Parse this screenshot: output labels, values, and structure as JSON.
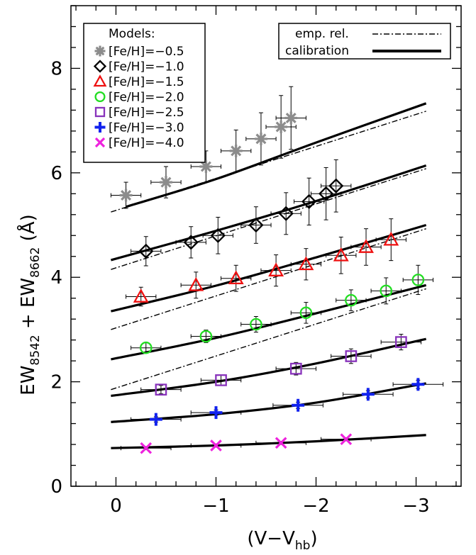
{
  "chart_data": {
    "type": "scatter",
    "title": "",
    "xlabel_main": "(V−V",
    "xlabel_sub": "hb",
    "xlabel_close": ")",
    "ylabel": {
      "prefix": "EW",
      "sub1": "8542",
      "mid": " + EW",
      "sub2": "8662",
      "suffix": " (Å)"
    },
    "xlim": [
      0.45,
      -3.45
    ],
    "ylim": [
      0,
      9.2
    ],
    "xticks": [
      0,
      -1,
      -2,
      -3
    ],
    "xtick_labels": [
      "0",
      "−1",
      "−2",
      "−3"
    ],
    "yticks": [
      0,
      2,
      4,
      6,
      8
    ],
    "ytick_labels": [
      "0",
      "2",
      "4",
      "6",
      "8"
    ],
    "legend_models": {
      "title": "Models:",
      "entries": [
        {
          "label": "[Fe/H]=−0.5",
          "marker": "asterisk",
          "color": "#8c8c8c"
        },
        {
          "label": "[Fe/H]=−1.0",
          "marker": "diamond",
          "color": "#000000"
        },
        {
          "label": "[Fe/H]=−1.5",
          "marker": "triangle",
          "color": "#ee1111"
        },
        {
          "label": "[Fe/H]=−2.0",
          "marker": "circle",
          "color": "#22dd22"
        },
        {
          "label": "[Fe/H]=−2.5",
          "marker": "square",
          "color": "#8833bb"
        },
        {
          "label": "[Fe/H]=−3.0",
          "marker": "plus",
          "color": "#1122ee"
        },
        {
          "label": "[Fe/H]=−4.0",
          "marker": "cross",
          "color": "#ee22dd"
        }
      ]
    },
    "legend_lines": {
      "entries": [
        {
          "label": "emp. rel.",
          "style": "dashdot"
        },
        {
          "label": "calibration",
          "style": "solid"
        }
      ]
    },
    "series": [
      {
        "name": "[Fe/H]=−0.5",
        "marker": "asterisk",
        "color": "#8c8c8c",
        "x": [
          -0.1,
          -0.5,
          -0.9,
          -1.2,
          -1.45,
          -1.65,
          -1.75
        ],
        "y": [
          5.57,
          5.82,
          6.12,
          6.42,
          6.65,
          6.88,
          7.05
        ],
        "xerr": [
          0.15,
          0.15,
          0.15,
          0.15,
          0.15,
          0.15,
          0.15
        ],
        "yerr": [
          0.25,
          0.3,
          0.3,
          0.4,
          0.5,
          0.6,
          0.6
        ]
      },
      {
        "name": "[Fe/H]=−1.0",
        "marker": "diamond",
        "color": "#000000",
        "x": [
          -0.3,
          -0.75,
          -1.02,
          -1.4,
          -1.7,
          -1.93,
          -2.1,
          -2.2
        ],
        "y": [
          4.5,
          4.67,
          4.8,
          5.0,
          5.22,
          5.45,
          5.6,
          5.75
        ],
        "xerr": [
          0.15,
          0.15,
          0.15,
          0.15,
          0.15,
          0.15,
          0.15,
          0.15
        ],
        "yerr": [
          0.28,
          0.3,
          0.35,
          0.35,
          0.4,
          0.45,
          0.5,
          0.5
        ]
      },
      {
        "name": "[Fe/H]=−1.5",
        "marker": "triangle",
        "color": "#ee1111",
        "x": [
          -0.25,
          -0.8,
          -1.2,
          -1.6,
          -1.9,
          -2.25,
          -2.5,
          -2.75
        ],
        "y": [
          3.63,
          3.85,
          3.98,
          4.13,
          4.25,
          4.42,
          4.58,
          4.72
        ],
        "xerr": [
          0.15,
          0.15,
          0.15,
          0.15,
          0.15,
          0.15,
          0.15,
          0.15
        ],
        "yerr": [
          0.18,
          0.25,
          0.25,
          0.3,
          0.3,
          0.35,
          0.35,
          0.4
        ]
      },
      {
        "name": "[Fe/H]=−2.0",
        "marker": "circle",
        "color": "#22dd22",
        "x": [
          -0.3,
          -0.9,
          -1.4,
          -1.9,
          -2.35,
          -2.7,
          -3.02
        ],
        "y": [
          2.65,
          2.87,
          3.1,
          3.32,
          3.56,
          3.74,
          3.95
        ],
        "xerr": [
          0.15,
          0.15,
          0.15,
          0.15,
          0.15,
          0.15,
          0.15
        ],
        "yerr": [
          0.1,
          0.12,
          0.15,
          0.2,
          0.2,
          0.25,
          0.28
        ]
      },
      {
        "name": "[Fe/H]=−2.5",
        "marker": "square",
        "color": "#8833bb",
        "x": [
          -0.45,
          -1.05,
          -1.8,
          -2.35,
          -2.85
        ],
        "y": [
          1.85,
          2.03,
          2.25,
          2.49,
          2.76
        ],
        "xerr": [
          0.2,
          0.2,
          0.2,
          0.2,
          0.2
        ],
        "yerr": [
          0.08,
          0.1,
          0.12,
          0.14,
          0.15
        ]
      },
      {
        "name": "[Fe/H]=−3.0",
        "marker": "plus",
        "color": "#1122ee",
        "x": [
          -0.4,
          -1.0,
          -1.82,
          -2.52,
          -3.02
        ],
        "y": [
          1.28,
          1.41,
          1.55,
          1.76,
          1.95
        ],
        "xerr": [
          0.25,
          0.25,
          0.25,
          0.25,
          0.25
        ],
        "yerr": [
          0.05,
          0.05,
          0.06,
          0.07,
          0.08
        ]
      },
      {
        "name": "[Fe/H]=−4.0",
        "marker": "cross",
        "color": "#ee22dd",
        "x": [
          -0.3,
          -1.0,
          -1.65,
          -2.3
        ],
        "y": [
          0.73,
          0.78,
          0.83,
          0.9
        ],
        "xerr": [
          0.25,
          0.25,
          0.25,
          0.25
        ],
        "yerr": [
          0.03,
          0.03,
          0.03,
          0.03
        ]
      }
    ],
    "calibration_curves": [
      {
        "x": [
          -0.1,
          -1.0,
          -2.0,
          -3.1
        ],
        "y": [
          5.35,
          5.88,
          6.58,
          7.33
        ]
      },
      {
        "x": [
          0.05,
          -1.0,
          -2.0,
          -3.1
        ],
        "y": [
          4.33,
          4.89,
          5.46,
          6.14
        ]
      },
      {
        "x": [
          0.05,
          -1.0,
          -2.0,
          -3.1
        ],
        "y": [
          3.35,
          3.84,
          4.38,
          5.0
        ]
      },
      {
        "x": [
          0.05,
          -1.0,
          -2.0,
          -3.1
        ],
        "y": [
          2.43,
          2.84,
          3.31,
          3.85
        ]
      },
      {
        "x": [
          0.05,
          -1.0,
          -2.0,
          -3.1
        ],
        "y": [
          1.73,
          2.0,
          2.35,
          2.82
        ]
      },
      {
        "x": [
          0.05,
          -1.0,
          -2.0,
          -3.1
        ],
        "y": [
          1.23,
          1.38,
          1.6,
          1.97
        ]
      },
      {
        "x": [
          0.05,
          -1.0,
          -2.0,
          -3.1
        ],
        "y": [
          0.73,
          0.78,
          0.86,
          0.98
        ]
      }
    ],
    "empirical_lines": [
      {
        "x": [
          0.05,
          -3.1
        ],
        "y": [
          5.25,
          7.18
        ]
      },
      {
        "x": [
          0.05,
          -3.1
        ],
        "y": [
          4.15,
          6.08
        ]
      },
      {
        "x": [
          0.05,
          -3.1
        ],
        "y": [
          3.0,
          4.93
        ]
      },
      {
        "x": [
          0.05,
          -3.1
        ],
        "y": [
          1.85,
          3.78
        ]
      }
    ]
  }
}
